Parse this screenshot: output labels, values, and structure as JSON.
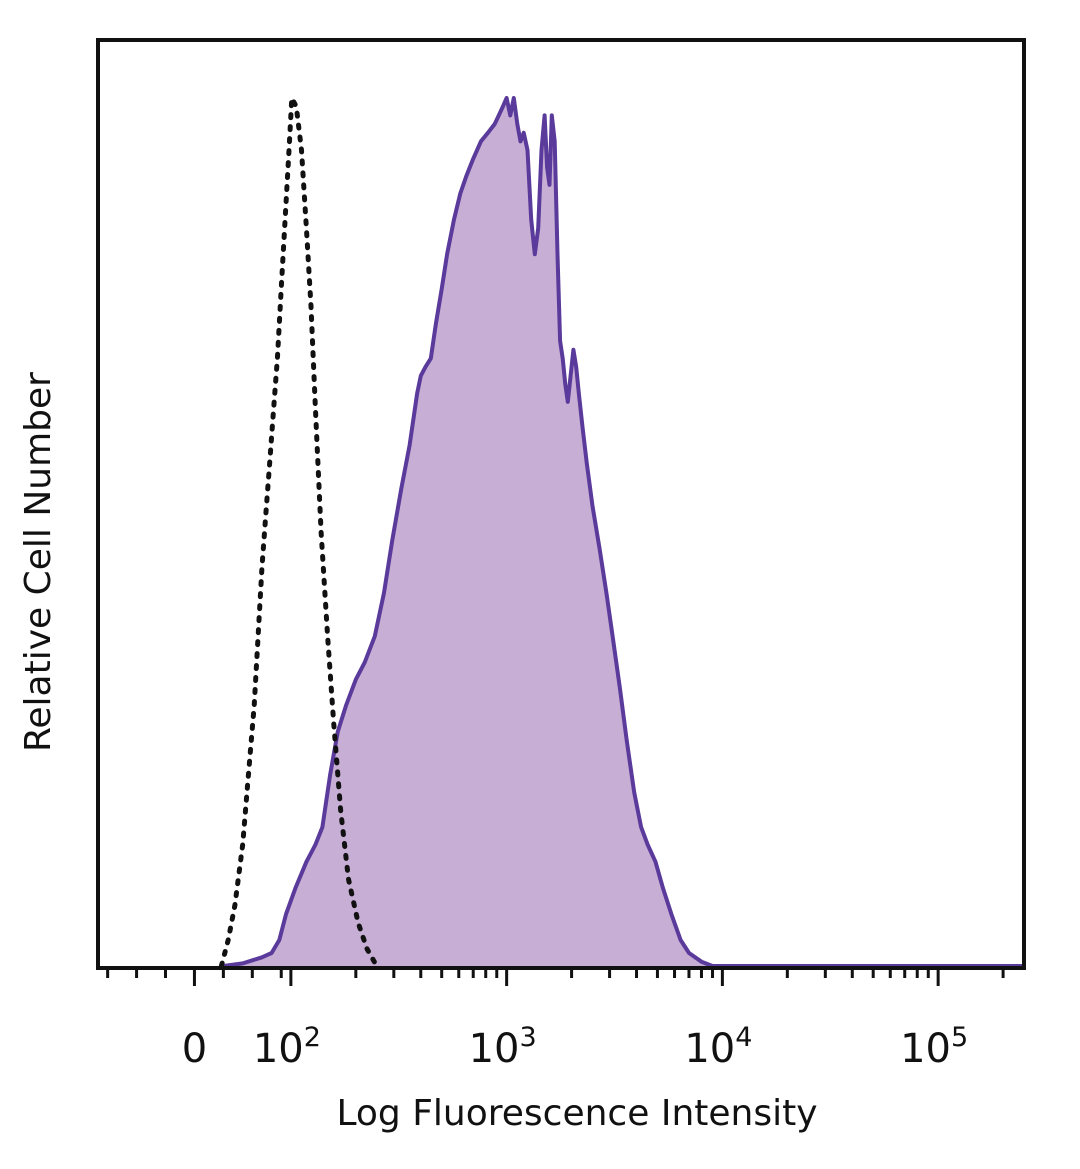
{
  "chart_data": {
    "type": "area",
    "xlabel": "Log Fluorescence Intensity",
    "ylabel": "Relative Cell Number",
    "x_scale": "biexponential",
    "xlim": [
      -100,
      250000
    ],
    "ylim": [
      0,
      100
    ],
    "grid": false,
    "legend": "none",
    "x_ticks": [
      {
        "value": 0,
        "base": "0",
        "exp": ""
      },
      {
        "value": 100,
        "base": "10",
        "exp": "2"
      },
      {
        "value": 1000,
        "base": "10",
        "exp": "3"
      },
      {
        "value": 10000,
        "base": "10",
        "exp": "4"
      },
      {
        "value": 100000,
        "base": "10",
        "exp": "5"
      }
    ],
    "series": [
      {
        "style": "dotted",
        "color": "#111111",
        "points": [
          [
            28,
            0
          ],
          [
            35,
            3
          ],
          [
            42,
            7
          ],
          [
            50,
            14
          ],
          [
            56,
            22
          ],
          [
            62,
            30
          ],
          [
            66,
            38
          ],
          [
            70,
            46
          ],
          [
            74,
            52
          ],
          [
            78,
            58
          ],
          [
            82,
            64
          ],
          [
            86,
            70
          ],
          [
            90,
            78
          ],
          [
            94,
            86
          ],
          [
            98,
            94
          ],
          [
            101,
            100
          ],
          [
            106,
            99
          ],
          [
            112,
            94
          ],
          [
            118,
            85
          ],
          [
            124,
            76
          ],
          [
            130,
            64
          ],
          [
            138,
            50
          ],
          [
            148,
            38
          ],
          [
            158,
            28
          ],
          [
            170,
            18
          ],
          [
            185,
            10
          ],
          [
            205,
            5
          ],
          [
            225,
            2
          ],
          [
            250,
            0
          ]
        ]
      },
      {
        "style": "filled",
        "color": "#5a3a9a",
        "fill": "#c7aed5",
        "points": [
          [
            30,
            0
          ],
          [
            50,
            0.3
          ],
          [
            70,
            1
          ],
          [
            80,
            1.5
          ],
          [
            88,
            3
          ],
          [
            95,
            6
          ],
          [
            105,
            9
          ],
          [
            118,
            12
          ],
          [
            130,
            14
          ],
          [
            140,
            16
          ],
          [
            152,
            22
          ],
          [
            165,
            27
          ],
          [
            180,
            30
          ],
          [
            200,
            33
          ],
          [
            220,
            35
          ],
          [
            245,
            38
          ],
          [
            270,
            43
          ],
          [
            295,
            49
          ],
          [
            325,
            55
          ],
          [
            355,
            60
          ],
          [
            385,
            66
          ],
          [
            400,
            68
          ],
          [
            420,
            69
          ],
          [
            445,
            70
          ],
          [
            470,
            74
          ],
          [
            500,
            78
          ],
          [
            530,
            82
          ],
          [
            570,
            86
          ],
          [
            610,
            89
          ],
          [
            650,
            91
          ],
          [
            700,
            93
          ],
          [
            760,
            95
          ],
          [
            820,
            96
          ],
          [
            880,
            97
          ],
          [
            920,
            98
          ],
          [
            960,
            99
          ],
          [
            1000,
            100
          ],
          [
            1040,
            98
          ],
          [
            1080,
            100
          ],
          [
            1120,
            97
          ],
          [
            1160,
            95
          ],
          [
            1200,
            96
          ],
          [
            1250,
            94
          ],
          [
            1300,
            86
          ],
          [
            1350,
            82
          ],
          [
            1400,
            85
          ],
          [
            1450,
            94
          ],
          [
            1500,
            98
          ],
          [
            1540,
            92
          ],
          [
            1580,
            90
          ],
          [
            1620,
            98
          ],
          [
            1670,
            95
          ],
          [
            1720,
            82
          ],
          [
            1770,
            72
          ],
          [
            1820,
            70
          ],
          [
            1870,
            67
          ],
          [
            1920,
            65
          ],
          [
            1980,
            68
          ],
          [
            2040,
            71
          ],
          [
            2100,
            69
          ],
          [
            2160,
            66
          ],
          [
            2250,
            62
          ],
          [
            2350,
            58
          ],
          [
            2500,
            53
          ],
          [
            2700,
            48
          ],
          [
            2900,
            43
          ],
          [
            3100,
            38
          ],
          [
            3350,
            32
          ],
          [
            3600,
            26
          ],
          [
            3900,
            20
          ],
          [
            4200,
            16
          ],
          [
            4500,
            14
          ],
          [
            4900,
            12
          ],
          [
            5300,
            9
          ],
          [
            5800,
            6
          ],
          [
            6400,
            3
          ],
          [
            7000,
            1.5
          ],
          [
            8000,
            0.5
          ],
          [
            9000,
            0
          ],
          [
            20000,
            0
          ],
          [
            100000,
            0
          ],
          [
            250000,
            0
          ]
        ]
      }
    ]
  }
}
